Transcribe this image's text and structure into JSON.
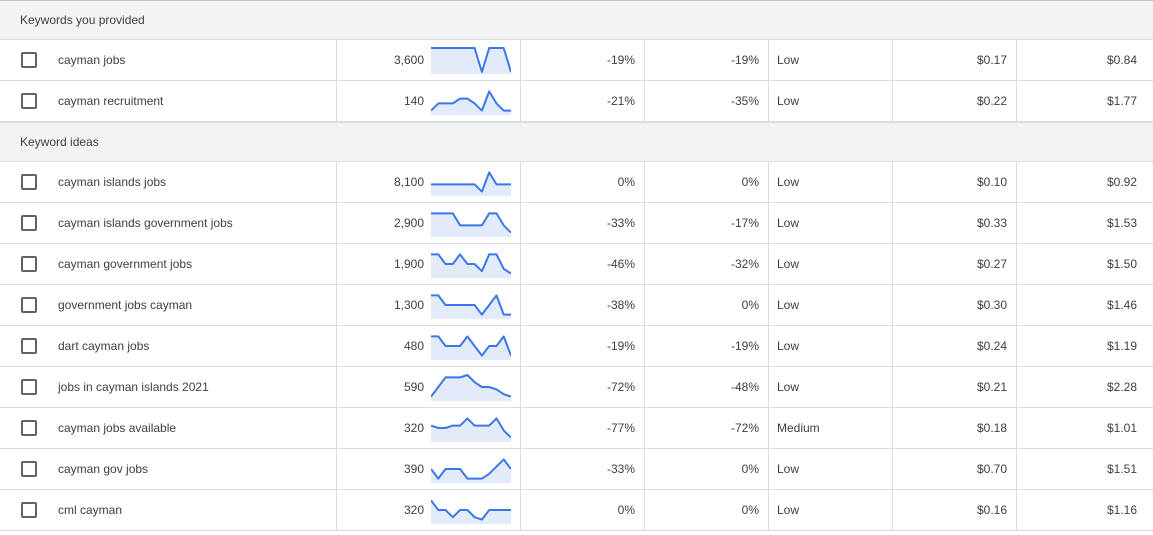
{
  "groups": [
    {
      "title": "Keywords you provided",
      "rows": [
        {
          "keyword": "cayman jobs",
          "volume": "3,600",
          "trend": [
            1,
            1,
            1,
            1,
            1,
            1,
            1,
            0,
            1,
            1,
            1,
            0
          ],
          "three_month": "-19%",
          "yoy": "-19%",
          "competition": "Low",
          "bid_low": "$0.17",
          "bid_high": "$0.84"
        },
        {
          "keyword": "cayman recruitment",
          "volume": "140",
          "trend": [
            0.1,
            0.4,
            0.4,
            0.4,
            0.6,
            0.6,
            0.4,
            0.1,
            0.9,
            0.4,
            0.1,
            0.1
          ],
          "three_month": "-21%",
          "yoy": "-35%",
          "competition": "Low",
          "bid_low": "$0.22",
          "bid_high": "$1.77"
        }
      ]
    },
    {
      "title": "Keyword ideas",
      "rows": [
        {
          "keyword": "cayman islands jobs",
          "volume": "8,100",
          "trend": [
            0.4,
            0.4,
            0.4,
            0.4,
            0.4,
            0.4,
            0.4,
            0.1,
            0.9,
            0.4,
            0.4,
            0.4
          ],
          "three_month": "0%",
          "yoy": "0%",
          "competition": "Low",
          "bid_low": "$0.10",
          "bid_high": "$0.92"
        },
        {
          "keyword": "cayman islands government jobs",
          "volume": "2,900",
          "trend": [
            0.9,
            0.9,
            0.9,
            0.9,
            0.4,
            0.4,
            0.4,
            0.4,
            0.9,
            0.9,
            0.4,
            0.1
          ],
          "three_month": "-33%",
          "yoy": "-17%",
          "competition": "Low",
          "bid_low": "$0.33",
          "bid_high": "$1.53"
        },
        {
          "keyword": "cayman government jobs",
          "volume": "1,900",
          "trend": [
            0.9,
            0.9,
            0.5,
            0.5,
            0.9,
            0.5,
            0.5,
            0.2,
            0.9,
            0.9,
            0.3,
            0.1
          ],
          "three_month": "-46%",
          "yoy": "-32%",
          "competition": "Low",
          "bid_low": "$0.27",
          "bid_high": "$1.50"
        },
        {
          "keyword": "government jobs cayman",
          "volume": "1,300",
          "trend": [
            0.9,
            0.9,
            0.5,
            0.5,
            0.5,
            0.5,
            0.5,
            0.1,
            0.5,
            0.9,
            0.1,
            0.1
          ],
          "three_month": "-38%",
          "yoy": "0%",
          "competition": "Low",
          "bid_low": "$0.30",
          "bid_high": "$1.46"
        },
        {
          "keyword": "dart cayman jobs",
          "volume": "480",
          "trend": [
            0.9,
            0.9,
            0.5,
            0.5,
            0.5,
            0.9,
            0.5,
            0.1,
            0.5,
            0.5,
            0.9,
            0.1
          ],
          "three_month": "-19%",
          "yoy": "-19%",
          "competition": "Low",
          "bid_low": "$0.24",
          "bid_high": "$1.19"
        },
        {
          "keyword": "jobs in cayman islands 2021",
          "volume": "590",
          "trend": [
            0.1,
            0.5,
            0.9,
            0.9,
            0.9,
            1.0,
            0.7,
            0.5,
            0.5,
            0.4,
            0.2,
            0.1
          ],
          "three_month": "-72%",
          "yoy": "-48%",
          "competition": "Low",
          "bid_low": "$0.21",
          "bid_high": "$2.28"
        },
        {
          "keyword": "cayman jobs available",
          "volume": "320",
          "trend": [
            0.6,
            0.5,
            0.5,
            0.6,
            0.6,
            0.9,
            0.6,
            0.6,
            0.6,
            0.9,
            0.4,
            0.1
          ],
          "three_month": "-77%",
          "yoy": "-72%",
          "competition": "Medium",
          "bid_low": "$0.18",
          "bid_high": "$1.01"
        },
        {
          "keyword": "cayman gov jobs",
          "volume": "390",
          "trend": [
            0.5,
            0.1,
            0.5,
            0.5,
            0.5,
            0.1,
            0.1,
            0.1,
            0.3,
            0.6,
            0.9,
            0.5
          ],
          "three_month": "-33%",
          "yoy": "0%",
          "competition": "Low",
          "bid_low": "$0.70",
          "bid_high": "$1.51"
        },
        {
          "keyword": "cml cayman",
          "volume": "320",
          "trend": [
            0.9,
            0.5,
            0.5,
            0.2,
            0.5,
            0.5,
            0.2,
            0.1,
            0.5,
            0.5,
            0.5,
            0.5
          ],
          "three_month": "0%",
          "yoy": "0%",
          "competition": "Low",
          "bid_low": "$0.16",
          "bid_high": "$1.16"
        }
      ]
    }
  ],
  "colors": {
    "sparkline_line": "#3b78e7",
    "sparkline_fill": "#e3ebfa",
    "group_background": "#f1f3f4",
    "grid_line": "#dadce0"
  }
}
